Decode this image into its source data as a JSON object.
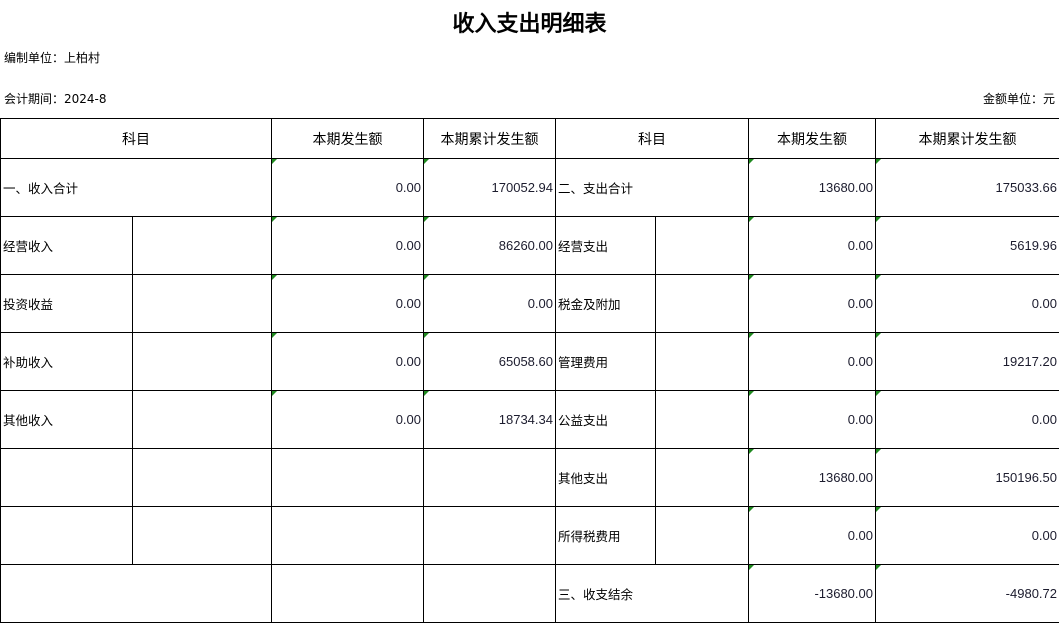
{
  "title": "收入支出明细表",
  "unit_label": "编制单位：上柏村",
  "period_label": "会计期间：2024-8",
  "currency_label": "金额单位：元",
  "headers": [
    "科目",
    "本期发生额",
    "本期累计发生额",
    "科目",
    "本期发生额",
    "本期累计发生额"
  ],
  "rows": [
    {
      "left": "一、收入合计",
      "lcur": "0.00",
      "lcum": "170052.94",
      "right": "二、支出合计",
      "rcur": "13680.00",
      "rcum": "175033.66"
    },
    {
      "left": "经营收入",
      "lcur": "0.00",
      "lcum": "86260.00",
      "right": "经营支出",
      "rcur": "0.00",
      "rcum": "5619.96"
    },
    {
      "left": "投资收益",
      "lcur": "0.00",
      "lcum": "0.00",
      "right": "税金及附加",
      "rcur": "0.00",
      "rcum": "0.00"
    },
    {
      "left": "补助收入",
      "lcur": "0.00",
      "lcum": "65058.60",
      "right": "管理费用",
      "rcur": "0.00",
      "rcum": "19217.20"
    },
    {
      "left": "其他收入",
      "lcur": "0.00",
      "lcum": "18734.34",
      "right": "公益支出",
      "rcur": "0.00",
      "rcum": "0.00"
    },
    {
      "left": "",
      "lcur": "",
      "lcum": "",
      "right": "其他支出",
      "rcur": "13680.00",
      "rcum": "150196.50"
    },
    {
      "left": "",
      "lcur": "",
      "lcum": "",
      "right": "所得税费用",
      "rcur": "0.00",
      "rcum": "0.00"
    },
    {
      "left": "",
      "lcur": "",
      "lcum": "",
      "right": "三、收支结余",
      "rcur": "-13680.00",
      "rcum": "-4980.72"
    }
  ]
}
